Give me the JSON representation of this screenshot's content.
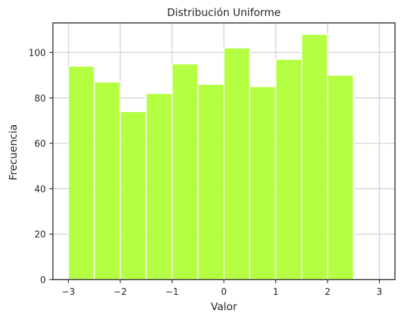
{
  "chart_data": {
    "type": "bar",
    "title": "Distribución Uniforme",
    "xlabel": "Valor",
    "ylabel": "Frecuencia",
    "bin_edges": [
      -3.0,
      -2.5,
      -2.0,
      -1.5,
      -1.0,
      -0.5,
      0.0,
      0.5,
      1.0,
      1.5,
      2.0,
      2.5,
      3.0
    ],
    "bin_left_edges": [
      -3.0,
      -2.5,
      -2.0,
      -1.5,
      -1.0,
      -0.5,
      0.0,
      0.5,
      1.0,
      1.5,
      2.0,
      2.5
    ],
    "values": [
      94,
      87,
      74,
      82,
      95,
      86,
      102,
      85,
      97,
      108,
      90,
      0
    ],
    "xlim": [
      -3.3,
      3.3
    ],
    "ylim": [
      0,
      113
    ],
    "x_ticks": [
      -3,
      -2,
      -1,
      0,
      1,
      2,
      3
    ],
    "x_tick_labels": [
      "−3",
      "−2",
      "−1",
      "0",
      "1",
      "2",
      "3"
    ],
    "y_ticks": [
      0,
      20,
      40,
      60,
      80,
      100
    ],
    "y_tick_labels": [
      "0",
      "20",
      "40",
      "60",
      "80",
      "100"
    ],
    "grid": true,
    "bar_color": "#adff2f",
    "bar_edge_color": "#ffffff"
  }
}
